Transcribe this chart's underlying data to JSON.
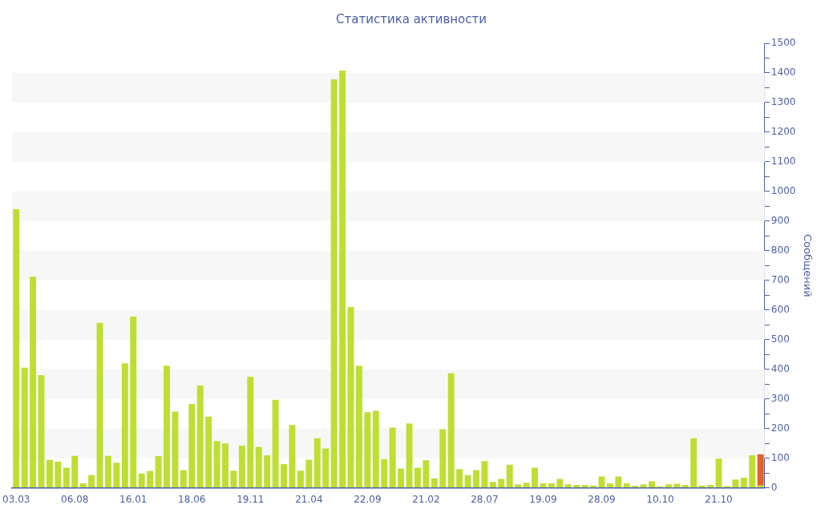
{
  "chart_data": {
    "type": "bar",
    "title": "Статистика активности",
    "ylabel": "Сообщений",
    "stacked": true,
    "legend": false,
    "grid": false,
    "categories": [
      "03.03",
      null,
      null,
      null,
      null,
      null,
      null,
      "06.08",
      null,
      null,
      null,
      null,
      null,
      null,
      "16.01",
      null,
      null,
      null,
      null,
      null,
      null,
      "18.06",
      null,
      null,
      null,
      null,
      null,
      null,
      "19.11",
      null,
      null,
      null,
      null,
      null,
      null,
      "21.04",
      null,
      null,
      null,
      null,
      null,
      null,
      "22.09",
      null,
      null,
      null,
      null,
      null,
      null,
      "21.02",
      null,
      null,
      null,
      null,
      null,
      null,
      "28.07",
      null,
      null,
      null,
      null,
      null,
      null,
      "19.09",
      null,
      null,
      null,
      null,
      null,
      null,
      "28.09",
      null,
      null,
      null,
      null,
      null,
      null,
      "10.10",
      null,
      null,
      null,
      null,
      null,
      null,
      "21.10",
      null,
      null,
      null,
      null,
      null
    ],
    "series": [
      {
        "color": "#bede32",
        "values": [
          940,
          405,
          712,
          380,
          95,
          88,
          68,
          108,
          15,
          43,
          557,
          108,
          85,
          420,
          578,
          48,
          57,
          107,
          412,
          257,
          60,
          283,
          345,
          240,
          158,
          150,
          58,
          142,
          375,
          138,
          110,
          297,
          80,
          212,
          58,
          95,
          167,
          133,
          1378,
          1408,
          610,
          412,
          255,
          260,
          97,
          203,
          65,
          217,
          68,
          93,
          32,
          198,
          387,
          63,
          43,
          60,
          90,
          20,
          30,
          78,
          12,
          17,
          68,
          15,
          15,
          30,
          12,
          10,
          10,
          8,
          38,
          15,
          38,
          15,
          7,
          12,
          22,
          5,
          12,
          14,
          10,
          167,
          8,
          10,
          98,
          6,
          28,
          34,
          110,
          8
        ]
      },
      {
        "color": "#e0622c",
        "values": [
          null,
          null,
          null,
          null,
          null,
          null,
          null,
          null,
          null,
          null,
          null,
          null,
          null,
          null,
          null,
          null,
          null,
          null,
          null,
          null,
          null,
          null,
          null,
          null,
          null,
          null,
          null,
          null,
          null,
          null,
          null,
          null,
          null,
          null,
          null,
          null,
          null,
          null,
          null,
          null,
          null,
          null,
          null,
          null,
          null,
          null,
          null,
          null,
          null,
          null,
          null,
          null,
          null,
          null,
          null,
          null,
          null,
          null,
          null,
          null,
          null,
          null,
          null,
          null,
          null,
          null,
          null,
          null,
          null,
          null,
          null,
          null,
          null,
          null,
          null,
          null,
          null,
          null,
          null,
          null,
          null,
          null,
          null,
          null,
          null,
          null,
          null,
          null,
          null,
          105
        ]
      }
    ],
    "ylim": [
      0,
      1500
    ],
    "yticks": [
      0,
      {
        "value": 50,
        "label": null
      },
      100,
      {
        "value": 150,
        "label": null
      },
      200,
      {
        "value": 250,
        "label": null
      },
      300,
      {
        "value": 350,
        "label": null
      },
      400,
      {
        "value": 450,
        "label": null
      },
      500,
      {
        "value": 550,
        "label": null
      },
      600,
      {
        "value": 650,
        "label": null
      },
      700,
      {
        "value": 750,
        "label": null
      },
      800,
      {
        "value": 850,
        "label": null
      },
      900,
      {
        "value": 950,
        "label": null
      },
      1000,
      {
        "value": 1050,
        "label": null
      },
      1100,
      {
        "value": 1150,
        "label": null
      },
      1200,
      {
        "value": 1250,
        "label": null
      },
      1300,
      {
        "value": 1350,
        "label": null
      },
      1400,
      {
        "value": 1450,
        "label": null
      },
      1500
    ],
    "bands": [
      {
        "axis": "y",
        "from": 100,
        "to": 200,
        "color": "#f7f7f7"
      },
      {
        "axis": "y",
        "from": 300,
        "to": 400,
        "color": "#f7f7f7"
      },
      {
        "axis": "y",
        "from": 500,
        "to": 600,
        "color": "#f7f7f7"
      },
      {
        "axis": "y",
        "from": 700,
        "to": 800,
        "color": "#f7f7f7"
      },
      {
        "axis": "y",
        "from": 900,
        "to": 1000,
        "color": "#f7f7f7"
      },
      {
        "axis": "y",
        "from": 1100,
        "to": 1200,
        "color": "#f7f7f7"
      },
      {
        "axis": "y",
        "from": 1300,
        "to": 1400,
        "color": "#f7f7f7"
      }
    ]
  }
}
